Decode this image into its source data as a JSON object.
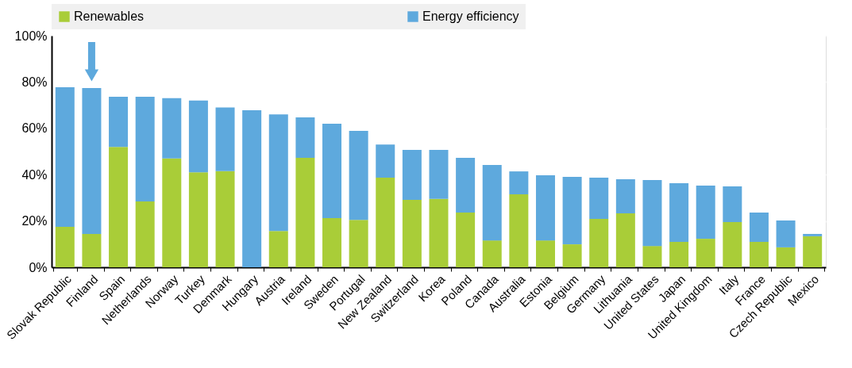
{
  "chart_data": {
    "type": "bar",
    "stacked": true,
    "categories": [
      "Slovak Republic",
      "Finland",
      "Spain",
      "Netherlands",
      "Norway",
      "Turkey",
      "Denmark",
      "Hungary",
      "Austria",
      "Ireland",
      "Sweden",
      "Portugal",
      "New Zealand",
      "Switzerland",
      "Korea",
      "Poland",
      "Canada",
      "Australia",
      "Estonia",
      "Belgium",
      "Germany",
      "Lithuania",
      "United States",
      "Japan",
      "United Kingdom",
      "Italy",
      "France",
      "Czech Republic",
      "Mexico"
    ],
    "series": [
      {
        "name": "Renewables",
        "color": "#a9cd38",
        "values": [
          17.5,
          14.4,
          52,
          28.4,
          47,
          41,
          41.5,
          0,
          15.7,
          47.3,
          21.2,
          20.5,
          38.7,
          29.1,
          29.5,
          23.6,
          11.6,
          31.5,
          11.6,
          9.9,
          20.9,
          23.3,
          9.2,
          11,
          12.3,
          19.5,
          11,
          8.6,
          13.4
        ]
      },
      {
        "name": "Energy efficiency",
        "color": "#5ea9dd",
        "values": [
          60.2,
          63,
          21.6,
          45.2,
          26,
          31,
          27.5,
          67.8,
          50.3,
          17.4,
          40.8,
          38.4,
          14.3,
          21.6,
          21.2,
          23.7,
          32.6,
          9.9,
          28.1,
          29.1,
          17.8,
          14.7,
          28.5,
          25.3,
          23,
          15.4,
          12.6,
          11.6,
          1.0
        ]
      }
    ],
    "ylim": [
      0,
      100
    ],
    "yticks": [
      {
        "value": 0,
        "label": "0%"
      },
      {
        "value": 20,
        "label": "20%"
      },
      {
        "value": 40,
        "label": "40%"
      },
      {
        "value": 60,
        "label": "60%"
      },
      {
        "value": 80,
        "label": "80%"
      },
      {
        "value": 100,
        "label": "100%"
      }
    ],
    "grid": true,
    "legend": "top"
  }
}
